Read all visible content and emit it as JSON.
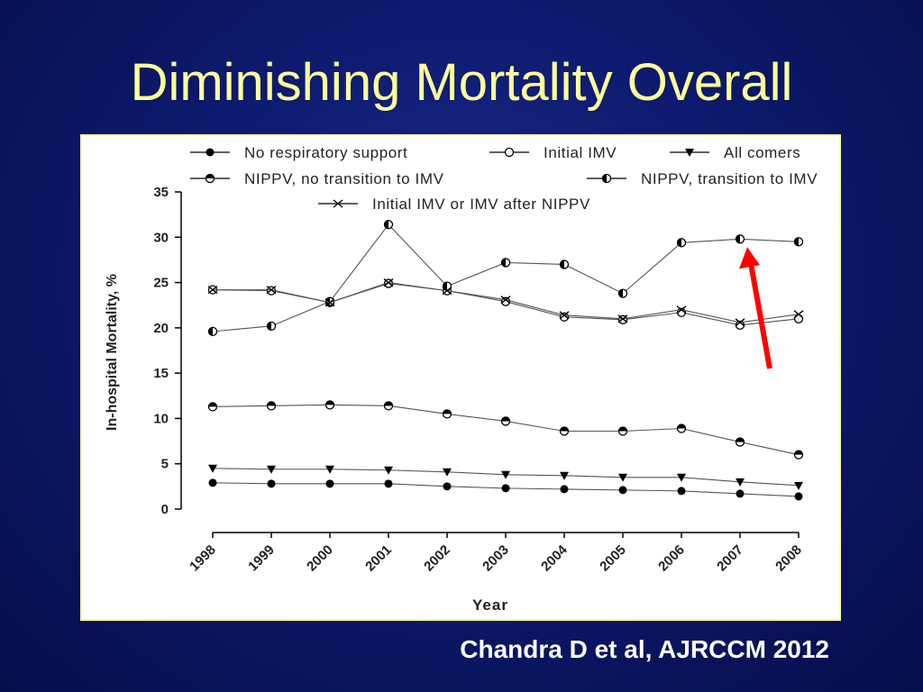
{
  "slide": {
    "title": "Diminishing Mortality Overall",
    "citation": "Chandra D et al, AJRCCM 2012"
  },
  "colors": {
    "background": "#0d1a6e",
    "title": "#ffff99",
    "citation": "#ffffff",
    "frame_border": "#ffff99",
    "plot_line": "#555555",
    "arrow": "#ff0000"
  },
  "chart_data": {
    "type": "line",
    "title": "",
    "xlabel": "Year",
    "ylabel": "In-hospital Mortality, %",
    "ylim": [
      0,
      35
    ],
    "yticks": [
      0,
      5,
      10,
      15,
      20,
      25,
      30,
      35
    ],
    "x": [
      "1998",
      "1999",
      "2000",
      "2001",
      "2002",
      "2003",
      "2004",
      "2005",
      "2006",
      "2007",
      "2008"
    ],
    "grid": false,
    "legend_position": "top",
    "series": [
      {
        "name": "No respiratory support",
        "marker": "filled-circle",
        "values": [
          2.9,
          2.8,
          2.8,
          2.8,
          2.5,
          2.3,
          2.2,
          2.1,
          2.0,
          1.7,
          1.4
        ]
      },
      {
        "name": "Initial IMV",
        "marker": "open-circle",
        "values": [
          24.2,
          24.1,
          22.8,
          24.9,
          24.1,
          22.9,
          21.2,
          20.9,
          21.7,
          20.3,
          21.0
        ]
      },
      {
        "name": "All comers",
        "marker": "filled-triangle-down",
        "values": [
          4.5,
          4.4,
          4.4,
          4.3,
          4.1,
          3.8,
          3.7,
          3.5,
          3.5,
          3.0,
          2.6
        ]
      },
      {
        "name": "NIPPV, no transition to IMV",
        "marker": "half-circle-top",
        "values": [
          11.3,
          11.4,
          11.5,
          11.4,
          10.5,
          9.7,
          8.6,
          8.6,
          8.9,
          7.4,
          6.0
        ]
      },
      {
        "name": "NIPPV, transition to IMV",
        "marker": "half-circle-left",
        "values": [
          19.6,
          20.2,
          22.9,
          31.4,
          24.6,
          27.2,
          27.0,
          23.8,
          29.4,
          29.8,
          29.5
        ]
      },
      {
        "name": "Initial IMV or IMV after NIPPV",
        "marker": "x",
        "values": [
          24.2,
          24.2,
          22.8,
          25.0,
          24.1,
          23.1,
          21.4,
          21.0,
          22.0,
          20.6,
          21.5
        ]
      }
    ],
    "annotations": [
      {
        "type": "arrow",
        "color": "#ff0000",
        "points_to_year": "2007",
        "points_to_series": "NIPPV, transition to IMV"
      }
    ]
  }
}
